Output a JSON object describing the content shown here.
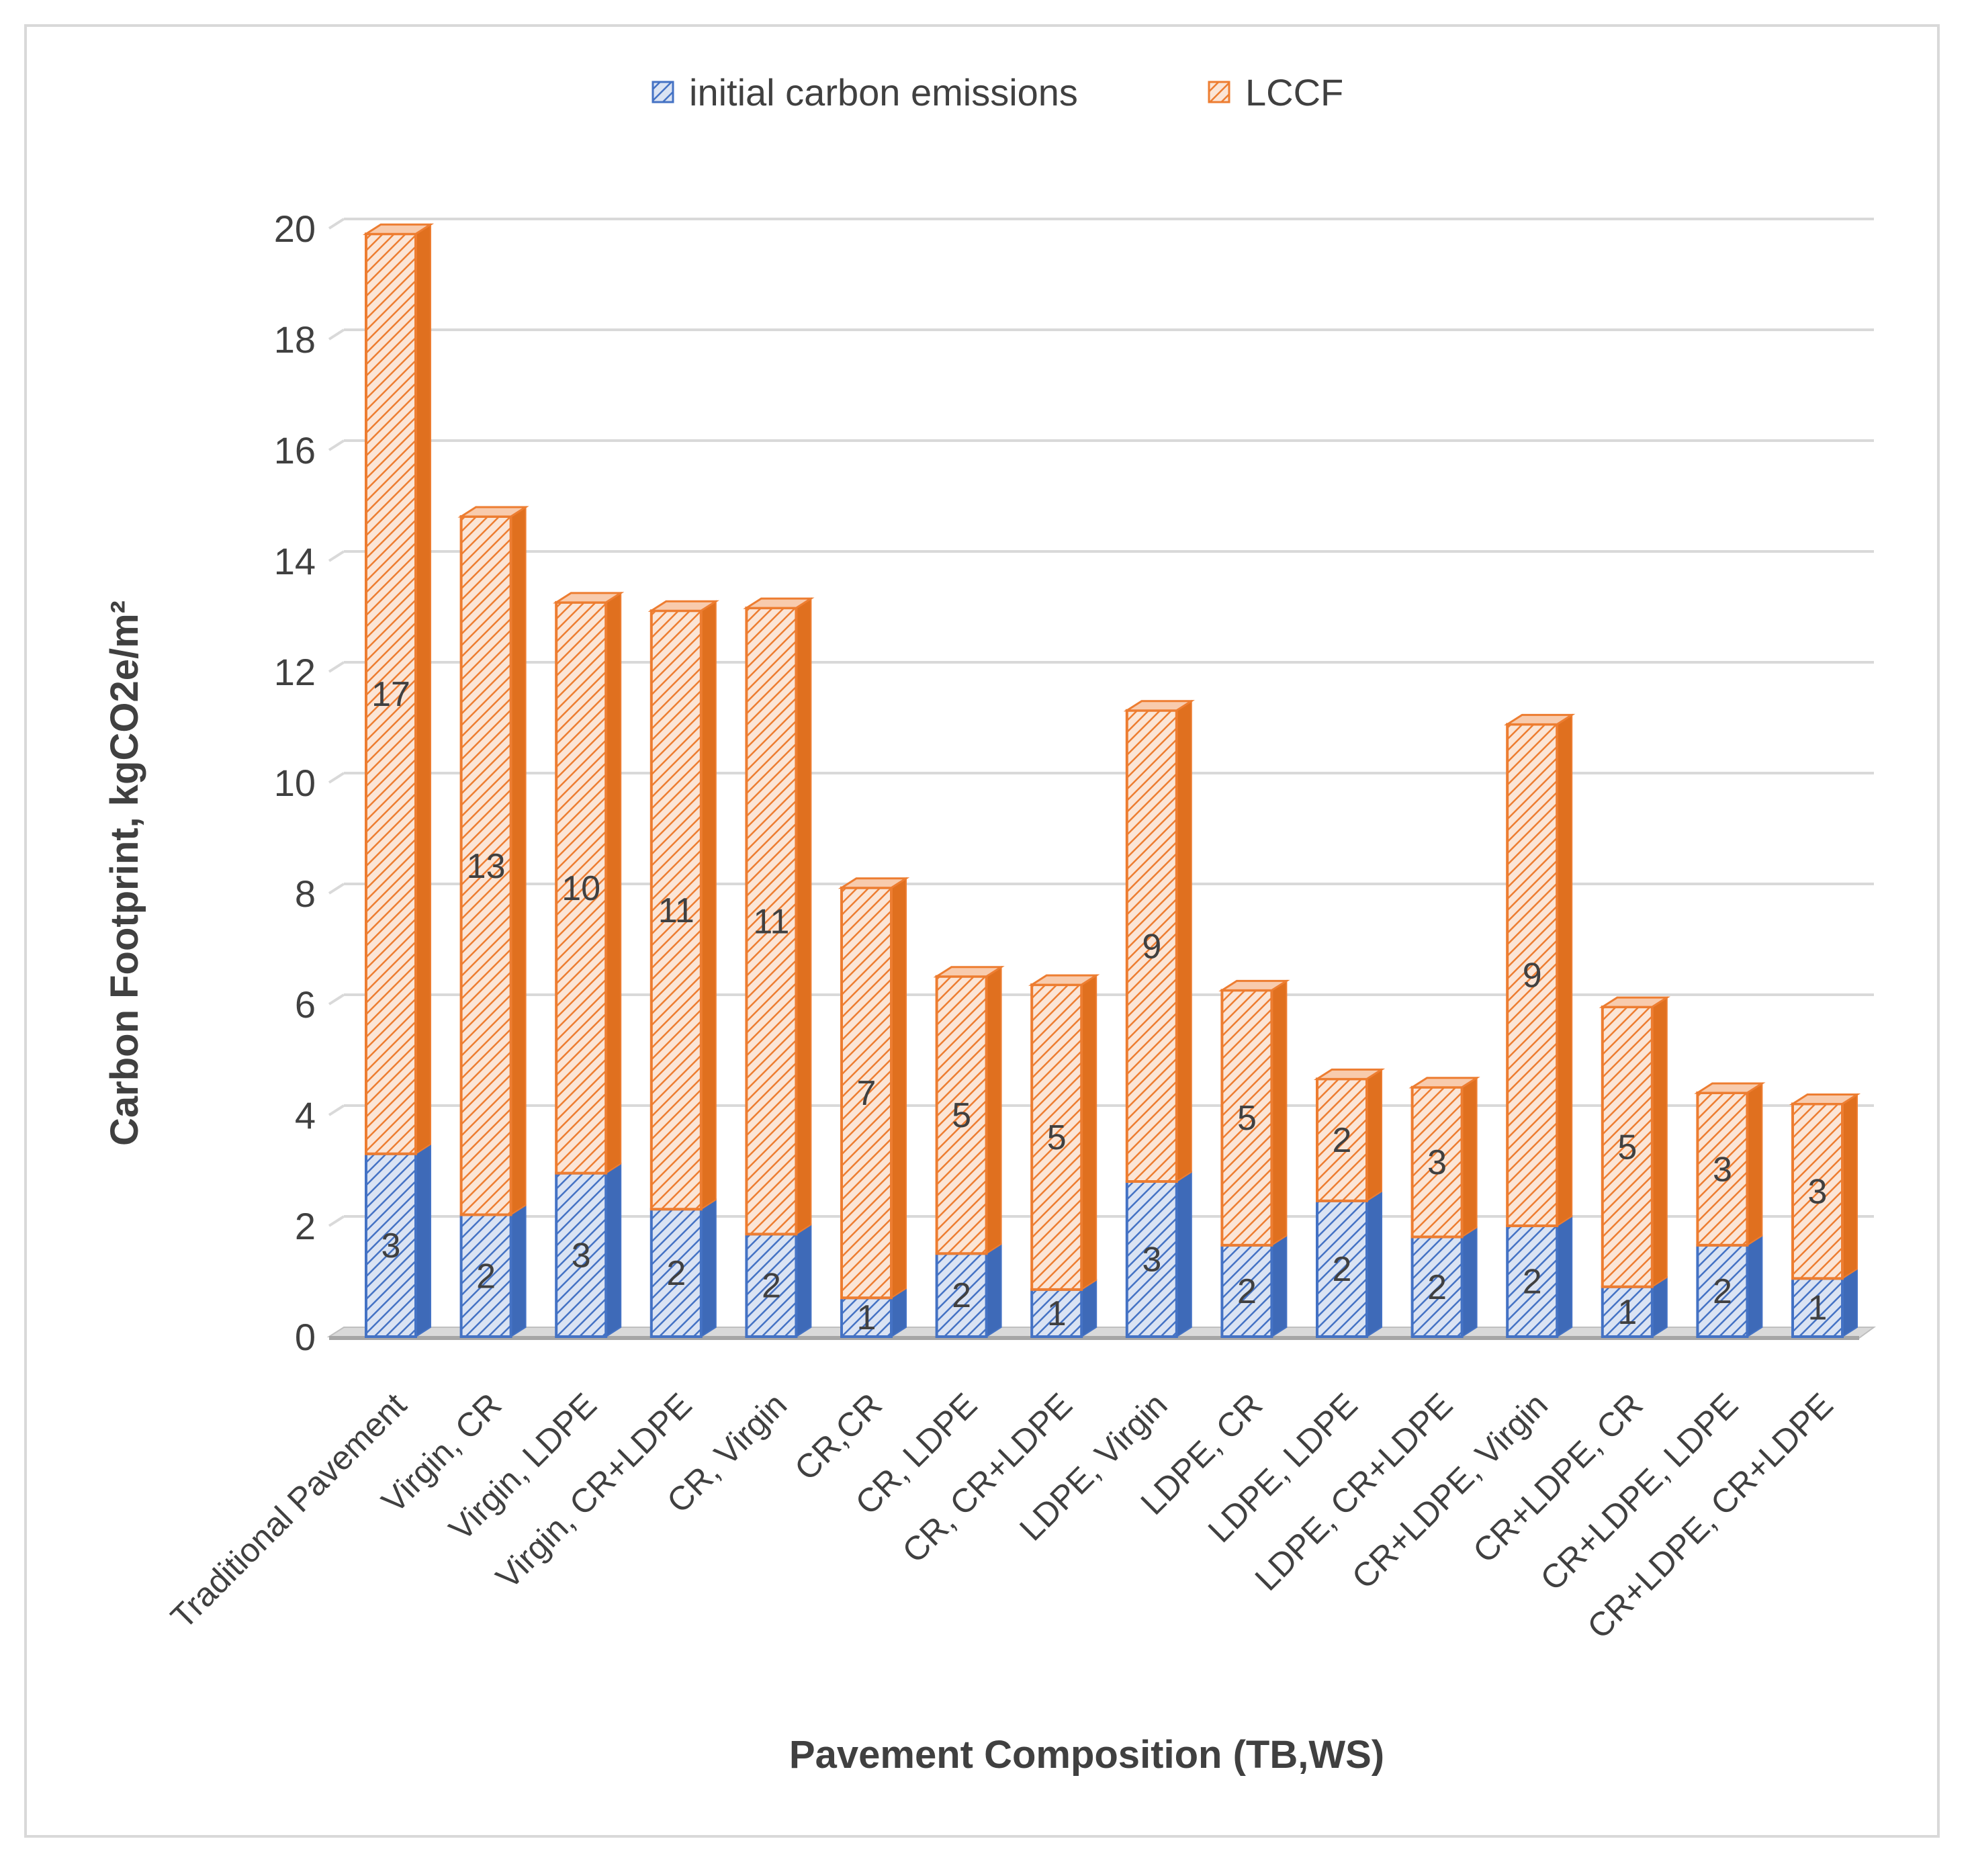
{
  "chart_data": {
    "type": "bar",
    "stacked": true,
    "title": "",
    "xlabel": "Pavement Composition (TB,WS)",
    "ylabel": "Carbon Footprint, kgCO2e/m²",
    "ylim": [
      0,
      20
    ],
    "yticks": [
      "0",
      "2",
      "4",
      "6",
      "8",
      "10",
      "12",
      "14",
      "16",
      "18",
      "20"
    ],
    "grid": true,
    "legend_position": "top",
    "categories": [
      "Traditional Pavement",
      "Virgin, CR",
      "Virgin, LDPE",
      "Virgin, CR+LDPE",
      "CR, Virgin",
      "CR,CR",
      "CR, LDPE",
      "CR, CR+LDPE",
      "LDPE, Virgin",
      "LDPE, CR",
      "LDPE, LDPE",
      "LDPE, CR+LDPE",
      "CR+LDPE, Virgin",
      "CR+LDPE, CR",
      "CR+LDPE, LDPE",
      "CR+LDPE, CR+LDPE"
    ],
    "series": [
      {
        "name": "initial carbon emissions",
        "color": "#4472c4",
        "values": [
          3.3,
          2.2,
          2.95,
          2.3,
          1.85,
          0.7,
          1.5,
          0.85,
          2.8,
          1.65,
          2.45,
          1.8,
          2.0,
          0.9,
          1.65,
          1.05
        ],
        "labels": [
          "3",
          "2",
          "3",
          "2",
          "2",
          "1",
          "2",
          "1",
          "3",
          "2",
          "2",
          "2",
          "2",
          "1",
          "2",
          "1"
        ]
      },
      {
        "name": "LCCF",
        "color": "#ed7d31",
        "values": [
          16.6,
          12.6,
          10.3,
          10.8,
          11.3,
          7.4,
          5.0,
          5.5,
          8.5,
          4.6,
          2.2,
          2.7,
          9.05,
          5.05,
          2.75,
          3.15
        ],
        "labels": [
          "17",
          "13",
          "10",
          "11",
          "11",
          "7",
          "5",
          "5",
          "9",
          "5",
          "2",
          "3",
          "9",
          "5",
          "3",
          "3"
        ]
      }
    ]
  }
}
